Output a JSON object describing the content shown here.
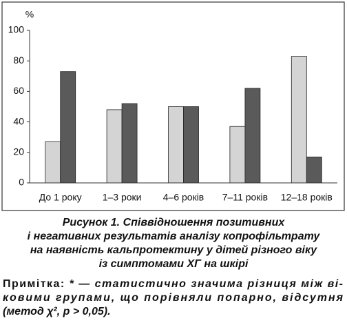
{
  "chart_data": {
    "type": "bar",
    "y_unit_label": "%",
    "categories": [
      "До 1 року",
      "1–3 роки",
      "4–6 років",
      "7–11 років",
      "12–18 років"
    ],
    "series": [
      {
        "color": "#d4d4d4",
        "values": [
          27,
          48,
          50,
          37,
          83
        ]
      },
      {
        "color": "#5a5a5a",
        "values": [
          73,
          52,
          50,
          62,
          17
        ]
      }
    ],
    "ylim": [
      0,
      100
    ],
    "yticks": [
      0,
      20,
      40,
      60,
      80,
      100
    ],
    "grid": false
  },
  "caption": {
    "lines": [
      "Рисунок 1. Співвідношення позитивних",
      "і негативних результатів аналізу копрофільтрату",
      "на наявність кальпротектину у дітей різного віку",
      "із симптомами ХГ на шкірі"
    ]
  },
  "note": {
    "label": "Примітка:",
    "lines": [
      "* — статистично значима різниця між ві-",
      "ковими групами, що порівняли попарно, відсутня",
      "(метод χ², p > 0,05)."
    ]
  }
}
